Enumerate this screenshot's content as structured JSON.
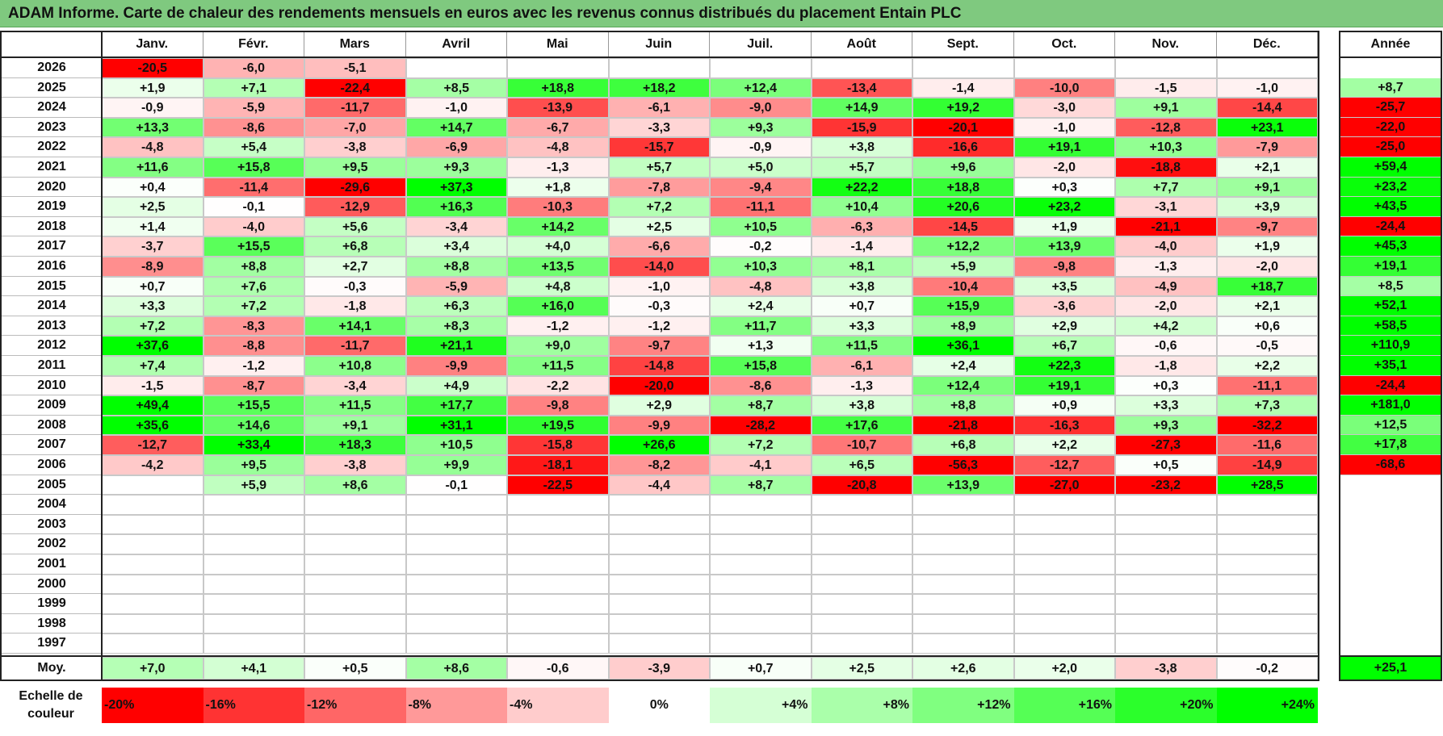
{
  "title": "ADAM Informe. Carte de chaleur des rendements mensuels en euros avec les revenus connus distribués du placement Entain PLC",
  "chart_data": {
    "type": "heatmap",
    "months": [
      "Janv.",
      "Févr.",
      "Mars",
      "Avril",
      "Mai",
      "Juin",
      "Juil.",
      "Août",
      "Sept.",
      "Oct.",
      "Nov.",
      "Déc."
    ],
    "year_column_label": "Année",
    "rows": [
      {
        "year": "2026",
        "months": [
          "-20,5",
          "-6,0",
          "-5,1",
          "",
          "",
          "",
          "",
          "",
          "",
          "",
          "",
          ""
        ],
        "annual": ""
      },
      {
        "year": "2025",
        "months": [
          "+1,9",
          "+7,1",
          "-22,4",
          "+8,5",
          "+18,8",
          "+18,2",
          "+12,4",
          "-13,4",
          "-1,4",
          "-10,0",
          "-1,5",
          "-1,0"
        ],
        "annual": "+8,7"
      },
      {
        "year": "2024",
        "months": [
          "-0,9",
          "-5,9",
          "-11,7",
          "-1,0",
          "-13,9",
          "-6,1",
          "-9,0",
          "+14,9",
          "+19,2",
          "-3,0",
          "+9,1",
          "-14,4"
        ],
        "annual": "-25,7"
      },
      {
        "year": "2023",
        "months": [
          "+13,3",
          "-8,6",
          "-7,0",
          "+14,7",
          "-6,7",
          "-3,3",
          "+9,3",
          "-15,9",
          "-20,1",
          "-1,0",
          "-12,8",
          "+23,1"
        ],
        "annual": "-22,0"
      },
      {
        "year": "2022",
        "months": [
          "-4,8",
          "+5,4",
          "-3,8",
          "-6,9",
          "-4,8",
          "-15,7",
          "-0,9",
          "+3,8",
          "-16,6",
          "+19,1",
          "+10,3",
          "-7,9"
        ],
        "annual": "-25,0"
      },
      {
        "year": "2021",
        "months": [
          "+11,6",
          "+15,8",
          "+9,5",
          "+9,3",
          "-1,3",
          "+5,7",
          "+5,0",
          "+5,7",
          "+9,6",
          "-2,0",
          "-18,8",
          "+2,1"
        ],
        "annual": "+59,4"
      },
      {
        "year": "2020",
        "months": [
          "+0,4",
          "-11,4",
          "-29,6",
          "+37,3",
          "+1,8",
          "-7,8",
          "-9,4",
          "+22,2",
          "+18,8",
          "+0,3",
          "+7,7",
          "+9,1"
        ],
        "annual": "+23,2"
      },
      {
        "year": "2019",
        "months": [
          "+2,5",
          "-0,1",
          "-12,9",
          "+16,3",
          "-10,3",
          "+7,2",
          "-11,1",
          "+10,4",
          "+20,6",
          "+23,2",
          "-3,1",
          "+3,9"
        ],
        "annual": "+43,5"
      },
      {
        "year": "2018",
        "months": [
          "+1,4",
          "-4,0",
          "+5,6",
          "-3,4",
          "+14,2",
          "+2,5",
          "+10,5",
          "-6,3",
          "-14,5",
          "+1,9",
          "-21,1",
          "-9,7"
        ],
        "annual": "-24,4"
      },
      {
        "year": "2017",
        "months": [
          "-3,7",
          "+15,5",
          "+6,8",
          "+3,4",
          "+4,0",
          "-6,6",
          "-0,2",
          "-1,4",
          "+12,2",
          "+13,9",
          "-4,0",
          "+1,9"
        ],
        "annual": "+45,3"
      },
      {
        "year": "2016",
        "months": [
          "-8,9",
          "+8,8",
          "+2,7",
          "+8,8",
          "+13,5",
          "-14,0",
          "+10,3",
          "+8,1",
          "+5,9",
          "-9,8",
          "-1,3",
          "-2,0"
        ],
        "annual": "+19,1"
      },
      {
        "year": "2015",
        "months": [
          "+0,7",
          "+7,6",
          "-0,3",
          "-5,9",
          "+4,8",
          "-1,0",
          "-4,8",
          "+3,8",
          "-10,4",
          "+3,5",
          "-4,9",
          "+18,7"
        ],
        "annual": "+8,5"
      },
      {
        "year": "2014",
        "months": [
          "+3,3",
          "+7,2",
          "-1,8",
          "+6,3",
          "+16,0",
          "-0,3",
          "+2,4",
          "+0,7",
          "+15,9",
          "-3,6",
          "-2,0",
          "+2,1"
        ],
        "annual": "+52,1"
      },
      {
        "year": "2013",
        "months": [
          "+7,2",
          "-8,3",
          "+14,1",
          "+8,3",
          "-1,2",
          "-1,2",
          "+11,7",
          "+3,3",
          "+8,9",
          "+2,9",
          "+4,2",
          "+0,6"
        ],
        "annual": "+58,5"
      },
      {
        "year": "2012",
        "months": [
          "+37,6",
          "-8,8",
          "-11,7",
          "+21,1",
          "+9,0",
          "-9,7",
          "+1,3",
          "+11,5",
          "+36,1",
          "+6,7",
          "-0,6",
          "-0,5"
        ],
        "annual": "+110,9"
      },
      {
        "year": "2011",
        "months": [
          "+7,4",
          "-1,2",
          "+10,8",
          "-9,9",
          "+11,5",
          "-14,8",
          "+15,8",
          "-6,1",
          "+2,4",
          "+22,3",
          "-1,8",
          "+2,2"
        ],
        "annual": "+35,1"
      },
      {
        "year": "2010",
        "months": [
          "-1,5",
          "-8,7",
          "-3,4",
          "+4,9",
          "-2,2",
          "-20,0",
          "-8,6",
          "-1,3",
          "+12,4",
          "+19,1",
          "+0,3",
          "-11,1"
        ],
        "annual": "-24,4"
      },
      {
        "year": "2009",
        "months": [
          "+49,4",
          "+15,5",
          "+11,5",
          "+17,7",
          "-9,8",
          "+2,9",
          "+8,7",
          "+3,8",
          "+8,8",
          "+0,9",
          "+3,3",
          "+7,3"
        ],
        "annual": "+181,0"
      },
      {
        "year": "2008",
        "months": [
          "+35,6",
          "+14,6",
          "+9,1",
          "+31,1",
          "+19,5",
          "-9,9",
          "-28,2",
          "+17,6",
          "-21,8",
          "-16,3",
          "+9,3",
          "-32,2"
        ],
        "annual": "+12,5"
      },
      {
        "year": "2007",
        "months": [
          "-12,7",
          "+33,4",
          "+18,3",
          "+10,5",
          "-15,8",
          "+26,6",
          "+7,2",
          "-10,7",
          "+6,8",
          "+2,2",
          "-27,3",
          "-11,6"
        ],
        "annual": "+17,8"
      },
      {
        "year": "2006",
        "months": [
          "-4,2",
          "+9,5",
          "-3,8",
          "+9,9",
          "-18,1",
          "-8,2",
          "-4,1",
          "+6,5",
          "-56,3",
          "-12,7",
          "+0,5",
          "-14,9"
        ],
        "annual": "-68,6"
      },
      {
        "year": "2005",
        "months": [
          "",
          "+5,9",
          "+8,6",
          "-0,1",
          "-22,5",
          "-4,4",
          "+8,7",
          "-20,8",
          "+13,9",
          "-27,0",
          "-23,2",
          "+28,5"
        ],
        "annual": ""
      },
      {
        "year": "2004",
        "months": [
          "",
          "",
          "",
          "",
          "",
          "",
          "",
          "",
          "",
          "",
          "",
          ""
        ],
        "annual": ""
      },
      {
        "year": "2003",
        "months": [
          "",
          "",
          "",
          "",
          "",
          "",
          "",
          "",
          "",
          "",
          "",
          ""
        ],
        "annual": ""
      },
      {
        "year": "2002",
        "months": [
          "",
          "",
          "",
          "",
          "",
          "",
          "",
          "",
          "",
          "",
          "",
          ""
        ],
        "annual": ""
      },
      {
        "year": "2001",
        "months": [
          "",
          "",
          "",
          "",
          "",
          "",
          "",
          "",
          "",
          "",
          "",
          ""
        ],
        "annual": ""
      },
      {
        "year": "2000",
        "months": [
          "",
          "",
          "",
          "",
          "",
          "",
          "",
          "",
          "",
          "",
          "",
          ""
        ],
        "annual": ""
      },
      {
        "year": "1999",
        "months": [
          "",
          "",
          "",
          "",
          "",
          "",
          "",
          "",
          "",
          "",
          "",
          ""
        ],
        "annual": ""
      },
      {
        "year": "1998",
        "months": [
          "",
          "",
          "",
          "",
          "",
          "",
          "",
          "",
          "",
          "",
          "",
          ""
        ],
        "annual": ""
      },
      {
        "year": "1997",
        "months": [
          "",
          "",
          "",
          "",
          "",
          "",
          "",
          "",
          "",
          "",
          "",
          ""
        ],
        "annual": ""
      }
    ],
    "average": {
      "label": "Moy.",
      "months": [
        "+7,0",
        "+4,1",
        "+0,5",
        "+8,6",
        "-0,6",
        "-3,9",
        "+0,7",
        "+2,5",
        "+2,6",
        "+2,0",
        "-3,8",
        "-0,2"
      ],
      "annual": "+25,1"
    },
    "color_scale": {
      "label": "Echelle de\ncouleur",
      "stops": [
        {
          "label": "-20%",
          "value": -20
        },
        {
          "label": "-16%",
          "value": -16
        },
        {
          "label": "-12%",
          "value": -12
        },
        {
          "label": "-8%",
          "value": -8
        },
        {
          "label": "-4%",
          "value": -4
        },
        {
          "label": "0%",
          "value": 0
        },
        {
          "label": "+4%",
          "value": 4
        },
        {
          "label": "+8%",
          "value": 8
        },
        {
          "label": "+12%",
          "value": 12
        },
        {
          "label": "+16%",
          "value": 16
        },
        {
          "label": "+20%",
          "value": 20
        },
        {
          "label": "+24%",
          "value": 24
        }
      ],
      "negative_color": "#ff0000",
      "zero_color": "#ffffff",
      "positive_color": "#00ff00"
    }
  }
}
